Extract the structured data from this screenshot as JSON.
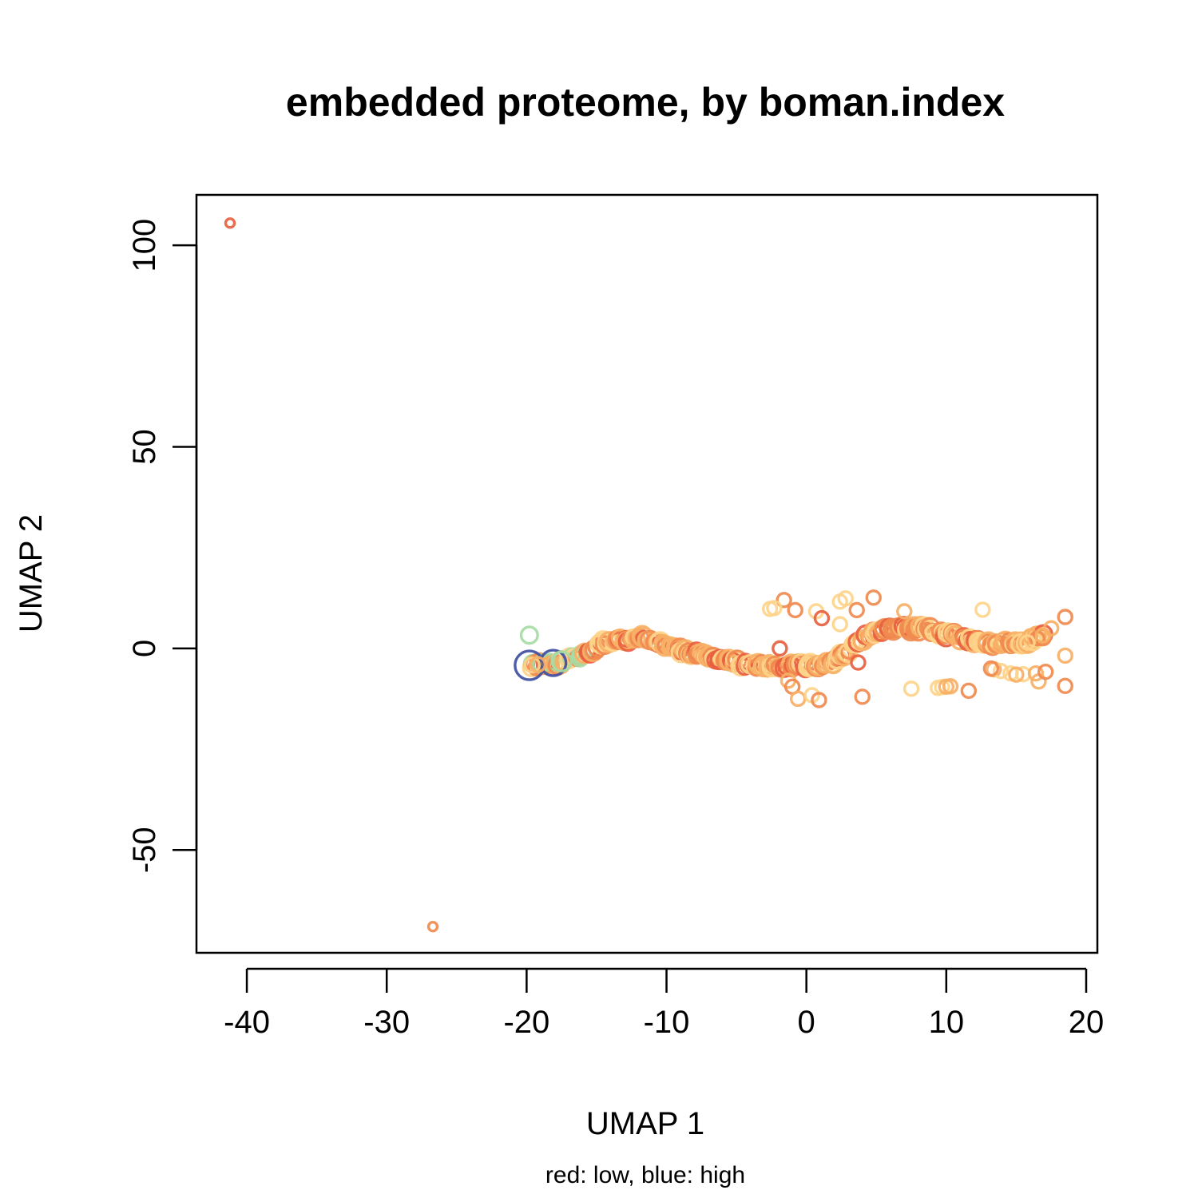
{
  "chart_data": {
    "type": "scatter",
    "title": "embedded proteome, by boman.index",
    "xlabel": "UMAP 1",
    "ylabel": "UMAP 2",
    "subtitle": "red: low, blue: high",
    "xlim": [
      -43.6,
      20.8
    ],
    "ylim": [
      -75.5,
      112.5
    ],
    "xticks": [
      -40,
      -30,
      -20,
      -10,
      0,
      10,
      20
    ],
    "yticks": [
      -50,
      0,
      50,
      100
    ],
    "xtick_labels": [
      "-40",
      "-30",
      "-20",
      "-10",
      "0",
      "10",
      "20"
    ],
    "ytick_labels": [
      "-50",
      "0",
      "50",
      "100"
    ],
    "grid": false,
    "legend": "none",
    "color_scale": {
      "low": "#d53e4f",
      "mid": "#fee08b",
      "high": "#3f4fa1"
    },
    "palette": [
      "#d53e4f",
      "#e8603f",
      "#f08a4f",
      "#f7b066",
      "#fdd48a",
      "#e8ee9a",
      "#a7dba4",
      "#3f4fa1"
    ],
    "points": [
      {
        "x": -41.2,
        "y": 105.5,
        "c": 1
      },
      {
        "x": -26.7,
        "y": -69.0,
        "c": 2
      },
      {
        "x": -2.6,
        "y": 9.8,
        "c": 4
      },
      {
        "x": -1.6,
        "y": 12.0,
        "c": 2
      },
      {
        "x": -0.8,
        "y": 9.5,
        "c": 2
      },
      {
        "x": 0.7,
        "y": 9.2,
        "c": 4
      },
      {
        "x": 1.1,
        "y": 7.5,
        "c": 1
      },
      {
        "x": 2.4,
        "y": 11.6,
        "c": 4
      },
      {
        "x": 2.8,
        "y": 12.4,
        "c": 4
      },
      {
        "x": 2.4,
        "y": 6.0,
        "c": 4
      },
      {
        "x": 3.6,
        "y": 9.5,
        "c": 2
      },
      {
        "x": 4.8,
        "y": 12.6,
        "c": 2
      },
      {
        "x": 7.0,
        "y": 9.2,
        "c": 3
      },
      {
        "x": 12.6,
        "y": 9.6,
        "c": 4
      },
      {
        "x": 18.5,
        "y": 7.8,
        "c": 2
      },
      {
        "x": 17.5,
        "y": 5.0,
        "c": 3
      },
      {
        "x": -2.3,
        "y": 10.0,
        "c": 4
      },
      {
        "x": -1.9,
        "y": 0.0,
        "c": 1
      },
      {
        "x": -1.3,
        "y": -8.0,
        "c": 3
      },
      {
        "x": -1.0,
        "y": -9.5,
        "c": 2
      },
      {
        "x": -0.6,
        "y": -12.5,
        "c": 3
      },
      {
        "x": 0.4,
        "y": -11.6,
        "c": 4
      },
      {
        "x": 0.9,
        "y": -12.8,
        "c": 2
      },
      {
        "x": 3.7,
        "y": -3.5,
        "c": 1
      },
      {
        "x": 4.0,
        "y": -12.0,
        "c": 2
      },
      {
        "x": 7.5,
        "y": -10.0,
        "c": 4
      },
      {
        "x": 9.4,
        "y": -9.8,
        "c": 4
      },
      {
        "x": 9.7,
        "y": -9.6,
        "c": 4
      },
      {
        "x": 10.0,
        "y": -9.5,
        "c": 3
      },
      {
        "x": 10.3,
        "y": -9.4,
        "c": 3
      },
      {
        "x": 11.6,
        "y": -10.5,
        "c": 2
      },
      {
        "x": 16.6,
        "y": -8.2,
        "c": 3
      },
      {
        "x": 18.5,
        "y": -9.3,
        "c": 2
      },
      {
        "x": 18.5,
        "y": -1.8,
        "c": 3
      },
      {
        "x": 13.4,
        "y": -5.2,
        "c": 3
      },
      {
        "x": 13.9,
        "y": -5.6,
        "c": 4
      },
      {
        "x": 14.6,
        "y": -6.2,
        "c": 4
      },
      {
        "x": 15.5,
        "y": -6.4,
        "c": 4
      },
      {
        "x": 16.4,
        "y": -6.2,
        "c": 3
      },
      {
        "x": 17.1,
        "y": -5.8,
        "c": 2
      },
      {
        "x": 13.2,
        "y": -5.0,
        "c": 2
      },
      {
        "x": 15.0,
        "y": -6.5,
        "c": 3
      },
      {
        "x": 16.0,
        "y": 3.0,
        "c": 3
      },
      {
        "x": 16.5,
        "y": 2.5,
        "c": 2
      },
      {
        "x": 16.9,
        "y": 3.2,
        "c": 3
      },
      {
        "x": 15.8,
        "y": 1.5,
        "c": 4
      }
    ],
    "curve": [
      {
        "x": -19.8,
        "y": -4.2
      },
      {
        "x": -17.8,
        "y": -3.6
      },
      {
        "x": -16.0,
        "y": -1.6
      },
      {
        "x": -14.0,
        "y": 1.8
      },
      {
        "x": -12.0,
        "y": 2.6
      },
      {
        "x": -10.0,
        "y": 0.8
      },
      {
        "x": -8.0,
        "y": -1.2
      },
      {
        "x": -6.0,
        "y": -2.8
      },
      {
        "x": -4.0,
        "y": -4.0
      },
      {
        "x": -2.0,
        "y": -4.4
      },
      {
        "x": 0.0,
        "y": -4.2
      },
      {
        "x": 1.6,
        "y": -3.8
      },
      {
        "x": 2.6,
        "y": -2.0
      },
      {
        "x": 3.6,
        "y": 1.5
      },
      {
        "x": 5.0,
        "y": 4.2
      },
      {
        "x": 6.5,
        "y": 5.0
      },
      {
        "x": 8.0,
        "y": 5.0
      },
      {
        "x": 10.0,
        "y": 3.6
      },
      {
        "x": 12.0,
        "y": 2.0
      },
      {
        "x": 14.0,
        "y": 1.2
      },
      {
        "x": 15.5,
        "y": 1.6
      },
      {
        "x": 17.0,
        "y": 3.2
      }
    ],
    "curve_point_count": 260,
    "endpoint_cluster": [
      {
        "x": -19.8,
        "y": -4.2,
        "c": 7,
        "r": 18
      },
      {
        "x": -18.1,
        "y": -3.6,
        "c": 7,
        "r": 16
      },
      {
        "x": -17.5,
        "y": -3.2,
        "c": 6,
        "r": 12
      }
    ]
  }
}
